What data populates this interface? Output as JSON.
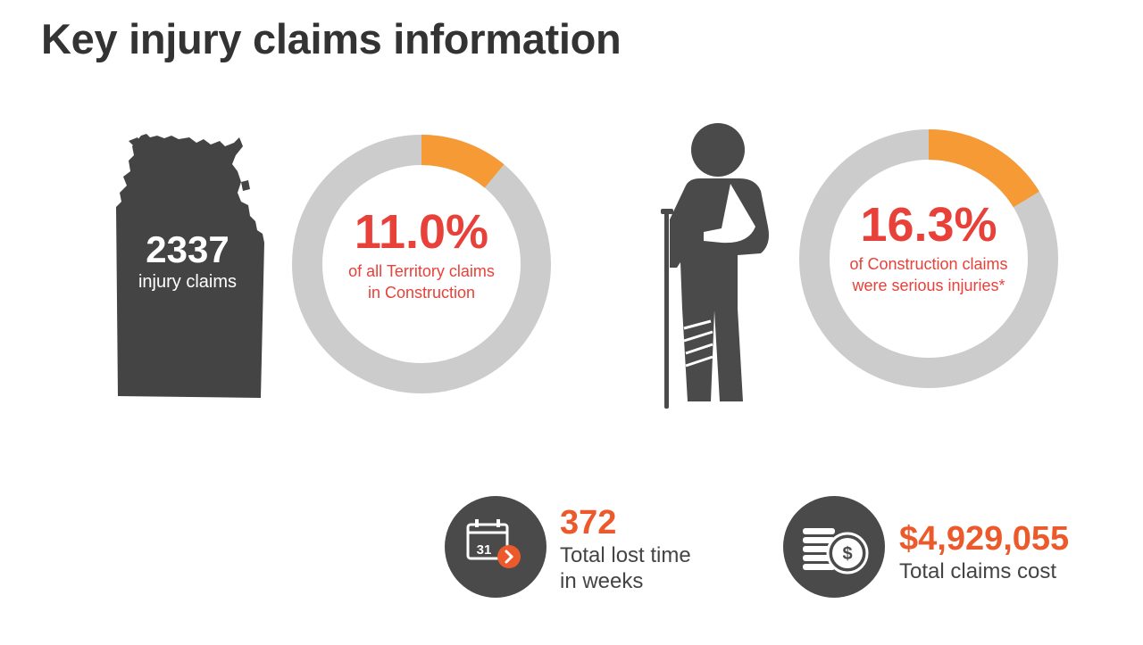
{
  "title": "Key injury claims information",
  "colors": {
    "dark": "#4a4a4a",
    "ring_grey": "#cccccc",
    "orange": "#f59a35",
    "red": "#e8413a",
    "value_orange": "#ec5a2c"
  },
  "territory": {
    "count": "2337",
    "label": "injury claims",
    "icon": "territory-map-icon"
  },
  "donut_territory": {
    "percent_value": 11.0,
    "percent_text": "11.0%",
    "line1": "of all Territory claims",
    "line2": "in Construction"
  },
  "injured_person": {
    "icon": "injured-person-icon"
  },
  "donut_serious": {
    "percent_value": 16.3,
    "percent_text": "16.3%",
    "line1": "of Construction claims",
    "line2": "were serious injuries*"
  },
  "lost_time": {
    "icon": "calendar-icon",
    "calendar_day": "31",
    "value": "372",
    "label_line1": "Total lost time",
    "label_line2": "in weeks"
  },
  "claims_cost": {
    "icon": "coins-dollar-icon",
    "coin_symbol": "$",
    "value": "$4,929,055",
    "label": "Total claims cost"
  }
}
